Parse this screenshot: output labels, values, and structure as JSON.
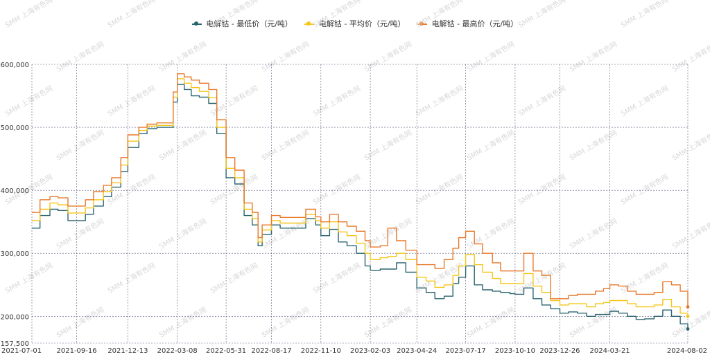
{
  "chart_data": {
    "type": "line",
    "title": "",
    "xlabel": "",
    "ylabel": "",
    "ylim": [
      157500,
      600000
    ],
    "y_ticks": [
      {
        "value": 600000,
        "label": "600,000"
      },
      {
        "value": 500000,
        "label": "500,000"
      },
      {
        "value": 400000,
        "label": "400,000"
      },
      {
        "value": 300000,
        "label": "300,000"
      },
      {
        "value": 200000,
        "label": "200,000"
      },
      {
        "value": 157500,
        "label": "157,500"
      }
    ],
    "x_ticks": [
      "2021-07-01",
      "2021-09-16",
      "2021-12-13",
      "2022-03-08",
      "2022-05-31",
      "2022-08-17",
      "2022-11-10",
      "2023-02-03",
      "2023-04-24",
      "2023-07-17",
      "2023-10-10",
      "2023-12-26",
      "2024-03-21",
      "2024-08-02"
    ],
    "grid": true,
    "legend_position": "top-center",
    "watermark": "SMM 上海有色网",
    "x": [
      "2021-07-01",
      "2021-07-15",
      "2021-08-01",
      "2021-08-15",
      "2021-09-01",
      "2021-09-16",
      "2021-10-01",
      "2021-10-15",
      "2021-11-01",
      "2021-11-15",
      "2021-12-01",
      "2021-12-13",
      "2022-01-01",
      "2022-01-15",
      "2022-02-01",
      "2022-02-15",
      "2022-03-01",
      "2022-03-08",
      "2022-03-20",
      "2022-04-01",
      "2022-04-15",
      "2022-05-01",
      "2022-05-15",
      "2022-05-31",
      "2022-06-15",
      "2022-07-01",
      "2022-07-15",
      "2022-07-25",
      "2022-08-01",
      "2022-08-17",
      "2022-09-01",
      "2022-09-15",
      "2022-10-01",
      "2022-10-15",
      "2022-11-01",
      "2022-11-10",
      "2022-11-25",
      "2022-12-10",
      "2022-12-25",
      "2023-01-10",
      "2023-01-25",
      "2023-02-03",
      "2023-02-20",
      "2023-03-05",
      "2023-03-20",
      "2023-04-05",
      "2023-04-24",
      "2023-05-10",
      "2023-05-25",
      "2023-06-10",
      "2023-06-25",
      "2023-07-05",
      "2023-07-17",
      "2023-08-01",
      "2023-08-15",
      "2023-09-01",
      "2023-09-15",
      "2023-10-01",
      "2023-10-10",
      "2023-10-25",
      "2023-11-10",
      "2023-11-25",
      "2023-12-10",
      "2023-12-26",
      "2024-01-10",
      "2024-01-25",
      "2024-02-10",
      "2024-02-25",
      "2024-03-10",
      "2024-03-21",
      "2024-04-05",
      "2024-04-20",
      "2024-05-05",
      "2024-05-20",
      "2024-06-05",
      "2024-06-20",
      "2024-07-05",
      "2024-07-20",
      "2024-08-02"
    ],
    "series": [
      {
        "name": "电解钴 - 最低价（元/吨）",
        "color": "#2a6470",
        "values": [
          340000,
          360000,
          370000,
          368000,
          352000,
          352000,
          362000,
          375000,
          390000,
          405000,
          430000,
          468000,
          490000,
          498000,
          500000,
          500000,
          540000,
          568000,
          560000,
          550000,
          548000,
          538000,
          490000,
          420000,
          410000,
          360000,
          345000,
          312000,
          330000,
          345000,
          340000,
          340000,
          340000,
          355000,
          345000,
          328000,
          338000,
          318000,
          312000,
          300000,
          280000,
          273000,
          275000,
          275000,
          285000,
          270000,
          245000,
          238000,
          228000,
          232000,
          252000,
          262000,
          280000,
          250000,
          242000,
          240000,
          238000,
          236000,
          235000,
          245000,
          228000,
          218000,
          212000,
          205000,
          207000,
          205000,
          200000,
          203000,
          203000,
          208000,
          205000,
          200000,
          195000,
          196000,
          200000,
          210000,
          200000,
          188000,
          180000
        ]
      },
      {
        "name": "电解钴 - 平均价（元/吨）",
        "color": "#f5c518",
        "values": [
          352000,
          370000,
          380000,
          377000,
          364000,
          364000,
          372000,
          385000,
          398000,
          412000,
          440000,
          478000,
          495000,
          502000,
          503000,
          503000,
          548000,
          577000,
          570000,
          563000,
          557000,
          547000,
          500000,
          435000,
          420000,
          370000,
          355000,
          318000,
          337000,
          352000,
          348000,
          348000,
          348000,
          362000,
          352000,
          340000,
          350000,
          334000,
          328000,
          316000,
          300000,
          290000,
          293000,
          295000,
          300000,
          290000,
          262000,
          256000,
          246000,
          250000,
          265000,
          280000,
          298000,
          282000,
          270000,
          260000,
          252000,
          252000,
          252000,
          268000,
          248000,
          238000,
          225000,
          218000,
          220000,
          220000,
          215000,
          220000,
          222000,
          225000,
          225000,
          220000,
          215000,
          215000,
          218000,
          227000,
          215000,
          205000,
          200000
        ]
      },
      {
        "name": "电解钴 - 最高价（元/吨）",
        "color": "#e8782a",
        "values": [
          365000,
          385000,
          390000,
          388000,
          375000,
          375000,
          385000,
          398000,
          408000,
          420000,
          452000,
          488000,
          500000,
          505000,
          507000,
          507000,
          556000,
          585000,
          580000,
          575000,
          570000,
          560000,
          512000,
          452000,
          432000,
          380000,
          365000,
          325000,
          345000,
          360000,
          357000,
          357000,
          357000,
          370000,
          358000,
          350000,
          362000,
          350000,
          343000,
          335000,
          320000,
          310000,
          312000,
          340000,
          320000,
          305000,
          282000,
          282000,
          276000,
          290000,
          308000,
          325000,
          335000,
          315000,
          300000,
          285000,
          272000,
          272000,
          272000,
          300000,
          272000,
          265000,
          228000,
          228000,
          233000,
          235000,
          235000,
          240000,
          244000,
          250000,
          248000,
          240000,
          235000,
          235000,
          238000,
          255000,
          250000,
          240000,
          215000
        ]
      }
    ]
  }
}
